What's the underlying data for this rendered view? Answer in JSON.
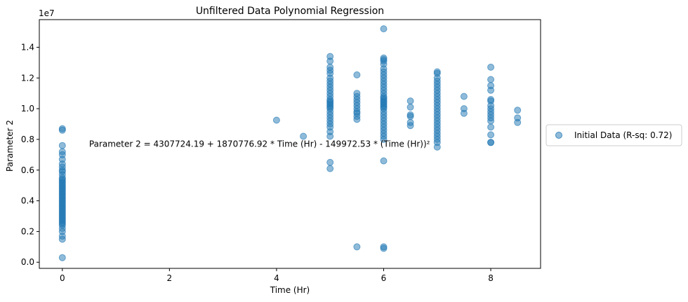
{
  "chart_data": {
    "type": "scatter",
    "title": "Unfiltered Data Polynomial Regression",
    "xlabel": "Time (Hr)",
    "ylabel": "Parameter 2",
    "offset_text": "1e7",
    "xlim": [
      -0.43,
      8.93
    ],
    "ylim": [
      -0.04,
      1.58
    ],
    "x_ticks": [
      0,
      2,
      4,
      6,
      8
    ],
    "y_ticks": [
      0.0,
      0.2,
      0.4,
      0.6,
      0.8,
      1.0,
      1.2,
      1.4
    ],
    "y_tick_labels": [
      "0.0",
      "0.2",
      "0.4",
      "0.6",
      "0.8",
      "1.0",
      "1.2",
      "1.4"
    ],
    "grid": false,
    "legend_position": "outside-right",
    "annotation": {
      "text": "Parameter 2 = 4307724.19 + 1870776.92 * Time (Hr) - 149972.53 * (Time (Hr))²",
      "x": 0.5,
      "y": 0.77
    },
    "series": [
      {
        "name": "Initial Data (R-sq: 0.72)",
        "color": "#1f77b4",
        "x": [
          0,
          0,
          0,
          0,
          0,
          0,
          0,
          0,
          0,
          0,
          0,
          0,
          0,
          0,
          0,
          0,
          0,
          0,
          0,
          0,
          0,
          0,
          0,
          0,
          0,
          0,
          0,
          0,
          0,
          0,
          0,
          0,
          0,
          0,
          0,
          0,
          0,
          0,
          0,
          0,
          0,
          0,
          0,
          0,
          0,
          0,
          0,
          0,
          4,
          4.5,
          5,
          5,
          5,
          5,
          5,
          5,
          5,
          5,
          5,
          5,
          5,
          5,
          5,
          5,
          5,
          5,
          5,
          5,
          5,
          5,
          5,
          5,
          5,
          5,
          5,
          5,
          5,
          5,
          5,
          5.5,
          5.5,
          5.5,
          5.5,
          5.5,
          5.5,
          5.5,
          5.5,
          5.5,
          5.5,
          5.5,
          5.5,
          6,
          6,
          6,
          6,
          6,
          6,
          6,
          6,
          6,
          6,
          6,
          6,
          6,
          6,
          6,
          6,
          6,
          6,
          6,
          6,
          6,
          6,
          6,
          6,
          6,
          6,
          6,
          6,
          6,
          6,
          6,
          6,
          6,
          6,
          6,
          6,
          6.5,
          6.5,
          6.5,
          6.5,
          6.5,
          6.5,
          7,
          7,
          7,
          7,
          7,
          7,
          7,
          7,
          7,
          7,
          7,
          7,
          7,
          7,
          7,
          7,
          7,
          7,
          7,
          7,
          7,
          7,
          7,
          7,
          7,
          7.5,
          7.5,
          7.5,
          8,
          8,
          8,
          8,
          8,
          8,
          8,
          8,
          8,
          8,
          8,
          8,
          8,
          8,
          8,
          8,
          8.5,
          8.5,
          8.5
        ],
        "y": [
          0.03,
          0.15,
          0.17,
          0.2,
          0.22,
          0.24,
          0.25,
          0.26,
          0.27,
          0.28,
          0.29,
          0.3,
          0.31,
          0.32,
          0.33,
          0.34,
          0.35,
          0.36,
          0.37,
          0.38,
          0.39,
          0.4,
          0.41,
          0.42,
          0.43,
          0.44,
          0.45,
          0.46,
          0.47,
          0.48,
          0.49,
          0.5,
          0.51,
          0.52,
          0.53,
          0.54,
          0.55,
          0.57,
          0.59,
          0.6,
          0.62,
          0.64,
          0.67,
          0.7,
          0.72,
          0.76,
          0.86,
          0.87,
          0.925,
          0.82,
          0.61,
          0.65,
          0.82,
          0.85,
          0.88,
          0.9,
          0.92,
          0.94,
          0.96,
          0.98,
          1.0,
          1.01,
          1.02,
          1.03,
          1.04,
          1.05,
          1.06,
          1.08,
          1.1,
          1.12,
          1.14,
          1.16,
          1.18,
          1.2,
          1.23,
          1.25,
          1.27,
          1.31,
          1.34,
          0.1,
          0.93,
          0.95,
          0.97,
          0.98,
          1.0,
          1.02,
          1.04,
          1.06,
          1.08,
          1.1,
          1.22,
          0.09,
          0.1,
          0.66,
          0.8,
          0.82,
          0.84,
          0.86,
          0.88,
          0.9,
          0.92,
          0.94,
          0.96,
          0.98,
          1.0,
          1.01,
          1.02,
          1.03,
          1.04,
          1.05,
          1.06,
          1.07,
          1.08,
          1.1,
          1.12,
          1.14,
          1.16,
          1.18,
          1.2,
          1.22,
          1.24,
          1.26,
          1.29,
          1.31,
          1.32,
          1.33,
          1.52,
          0.89,
          0.91,
          0.95,
          0.96,
          1.01,
          1.05,
          0.75,
          0.78,
          0.8,
          0.82,
          0.84,
          0.86,
          0.88,
          0.9,
          0.92,
          0.94,
          0.96,
          0.98,
          1.0,
          1.02,
          1.04,
          1.06,
          1.08,
          1.1,
          1.12,
          1.14,
          1.16,
          1.18,
          1.2,
          1.23,
          1.24,
          0.97,
          1.0,
          1.08,
          0.78,
          0.78,
          0.83,
          0.88,
          0.92,
          0.94,
          0.96,
          0.98,
          1.0,
          1.02,
          1.05,
          1.06,
          1.12,
          1.15,
          1.19,
          1.27,
          0.91,
          0.94,
          0.99
        ]
      }
    ]
  }
}
